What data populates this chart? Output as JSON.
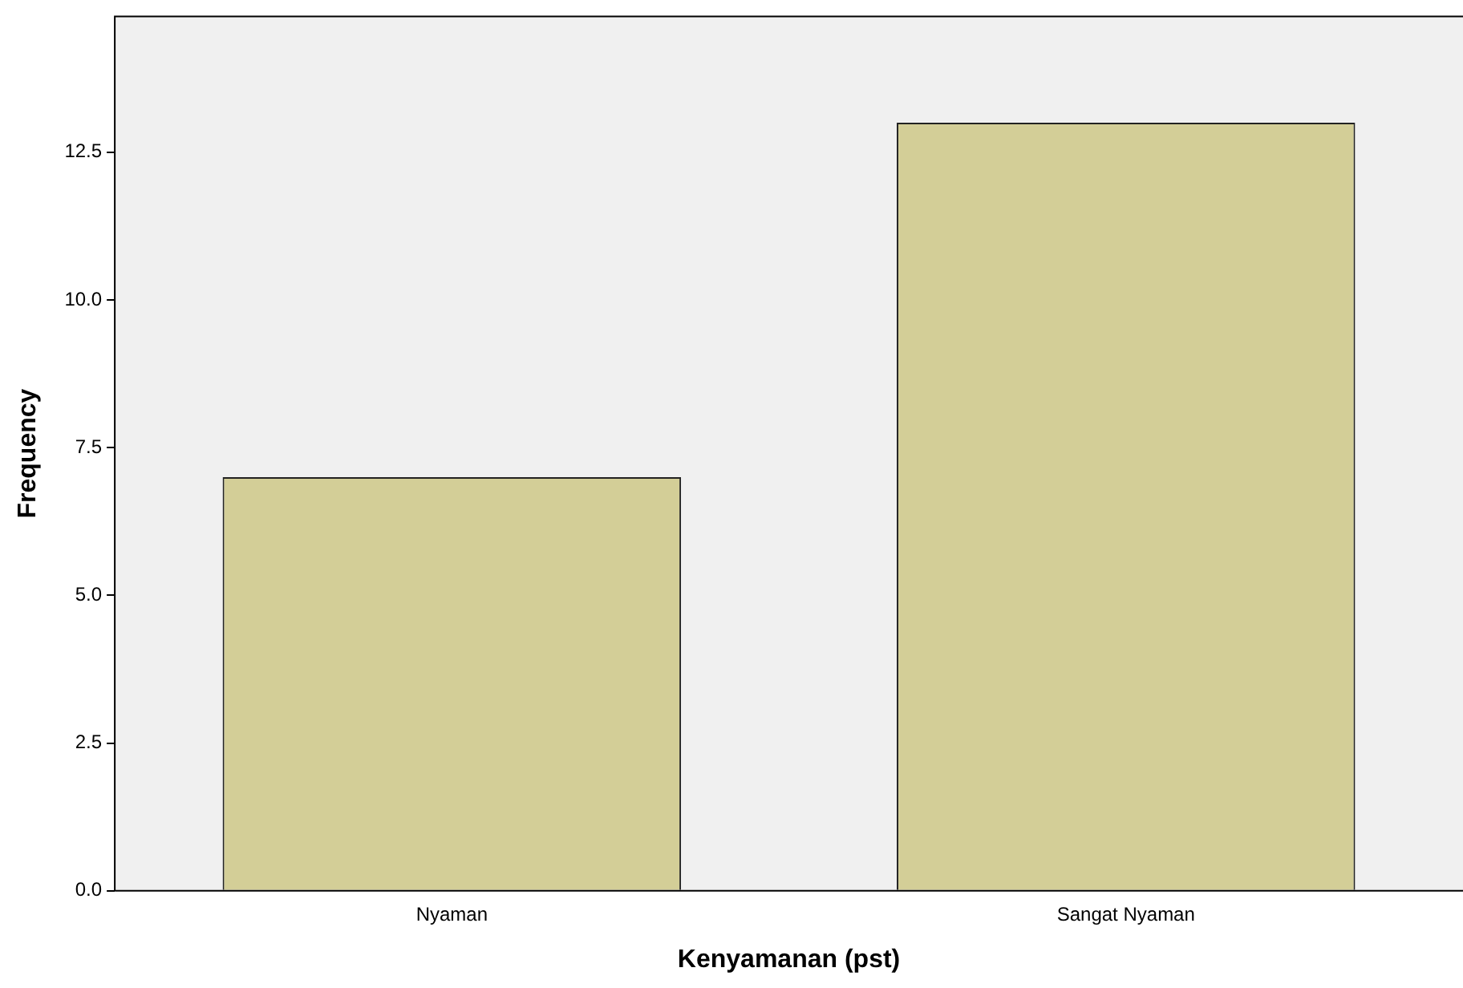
{
  "chart_data": {
    "type": "bar",
    "xlabel": "Kenyamanan (pst)",
    "ylabel": "Frequency",
    "categories": [
      "Nyaman",
      "Sangat Nyaman"
    ],
    "values": [
      7,
      13
    ],
    "color": "#d3ce97",
    "ylim": [
      0,
      14.8
    ],
    "yticks": [
      {
        "value": 0,
        "label": "0.0"
      },
      {
        "value": 2.5,
        "label": "2.5"
      },
      {
        "value": 5,
        "label": "5.0"
      },
      {
        "value": 7.5,
        "label": "7.5"
      },
      {
        "value": 10,
        "label": "10.0"
      },
      {
        "value": 12.5,
        "label": "12.5"
      }
    ],
    "grid": false,
    "legend": false
  }
}
